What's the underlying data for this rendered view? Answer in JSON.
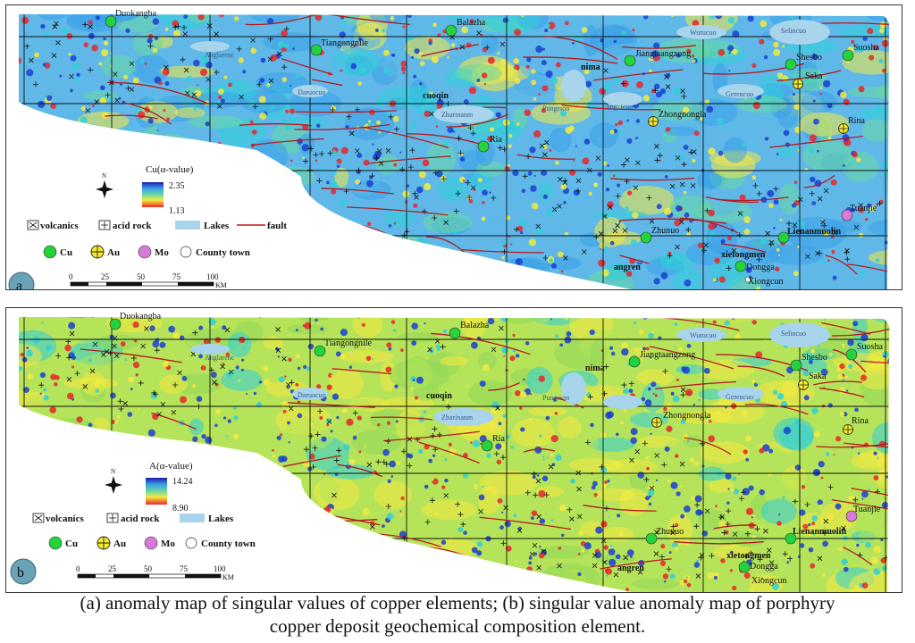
{
  "panels": [
    {
      "letter": "a",
      "legend_title": "Cu(α-value)",
      "scale_max": "2.35",
      "scale_min": "1.13",
      "legend_items": [
        "volcanics",
        "acid rock",
        "Lakes",
        "fault"
      ],
      "symbols": [
        "Cu",
        "Au",
        "Mo",
        "County town"
      ]
    },
    {
      "letter": "b",
      "legend_title": "A(α-value)",
      "scale_max": "14.24",
      "scale_min": "8.90",
      "legend_items": [
        "volcanics",
        "acid rock",
        "Lakes"
      ],
      "symbols": [
        "Cu",
        "Au",
        "Mo",
        "County town"
      ]
    }
  ],
  "north_label": "N",
  "scale_bar": {
    "ticks": [
      "0",
      "25",
      "50",
      "75",
      "100"
    ],
    "unit": "KM"
  },
  "places": {
    "duokangba": "Duokangba",
    "balazha": "Balazha",
    "tiangongnile": "Tiangongnile",
    "jiangtaangzong": "Jiangtaangzong",
    "nima": "nima",
    "suosha": "Suosha",
    "shesbo": "Shesbo",
    "saka": "Saka",
    "cuoqin": "cuoqin",
    "zhongnongla": "Zhongnongla",
    "rina": "Rina",
    "ria": "Ria",
    "tuanjie": "Tuanjie",
    "zhunuo": "Zhunuo",
    "lienanmuolin": "Lienanmuolin",
    "xietongmen": "xietongmen",
    "angren": "angren",
    "dongga": "Dongga",
    "xiongcun": "Xiongcun"
  },
  "lakes": {
    "anglarenc": "Anglarenc",
    "daruocuo": "Daruocuo",
    "zharinanm": "Zharinanm",
    "pungrson": "Pungrson",
    "angzicuo": "Angzicuo",
    "wurucuo": "Wurucuo",
    "selincuo": "Selincuo",
    "gerencuo": "Gerencuo"
  },
  "caption": {
    "line1": "(a) anomaly map of singular values of copper elements; (b) singular value anomaly map of porphyry",
    "line2": "copper deposit geochemical composition element."
  },
  "colors": {
    "map_bg": "#5fb8e8",
    "high": "#e8262a",
    "mid": "#f5e940",
    "low": "#1a3fd1",
    "fault": "#b8191d",
    "cu": "#22d33a",
    "au": "#f5ea2a",
    "mo": "#d77ad9",
    "lake": "#a8d4ec"
  }
}
